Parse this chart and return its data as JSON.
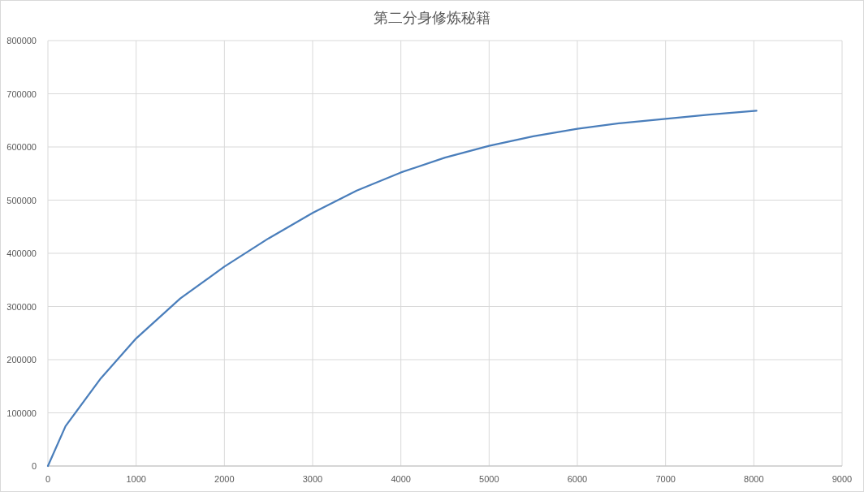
{
  "chart_data": {
    "type": "line",
    "title": "第二分身修炼秘籍",
    "x": [
      0,
      200,
      600,
      1000,
      1500,
      2000,
      2500,
      3000,
      3500,
      4000,
      4500,
      5000,
      5500,
      6000,
      6500,
      7000,
      7500,
      8030
    ],
    "values": [
      0,
      75000,
      165000,
      240000,
      315000,
      375000,
      428000,
      476000,
      518000,
      552000,
      580000,
      602000,
      620000,
      634000,
      645000,
      653000,
      661000,
      668000
    ],
    "color": "#4a7ebb",
    "xlim": [
      0,
      9000
    ],
    "ylim": [
      0,
      800000
    ],
    "xticks": [
      0,
      1000,
      2000,
      3000,
      4000,
      5000,
      6000,
      7000,
      8000,
      9000
    ],
    "yticks": [
      0,
      100000,
      200000,
      300000,
      400000,
      500000,
      600000,
      700000,
      800000
    ],
    "grid": true
  }
}
